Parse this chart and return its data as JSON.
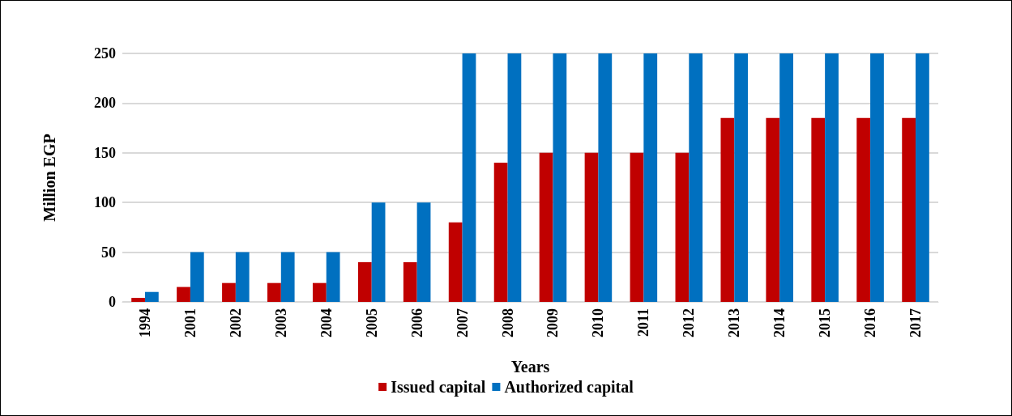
{
  "chart_data": {
    "type": "bar",
    "xlabel": "Years",
    "ylabel": "Million EGP",
    "categories": [
      "1994",
      "2001",
      "2002",
      "2003",
      "2004",
      "2005",
      "2006",
      "2007",
      "2008",
      "2009",
      "2010",
      "2011",
      "2012",
      "2013",
      "2014",
      "2015",
      "2016",
      "2017"
    ],
    "series": [
      {
        "name": "Issued capital",
        "color": "#c00000",
        "values": [
          4,
          15,
          19,
          19,
          19,
          40,
          40,
          80,
          140,
          150,
          150,
          150,
          150,
          185,
          185,
          185,
          185,
          185
        ]
      },
      {
        "name": "Authorized capital",
        "color": "#0070c0",
        "values": [
          10,
          50,
          50,
          50,
          50,
          100,
          100,
          250,
          250,
          250,
          250,
          250,
          250,
          250,
          250,
          250,
          250,
          250
        ]
      }
    ],
    "ylim": [
      0,
      250
    ],
    "yticks": [
      0,
      50,
      100,
      150,
      200,
      250
    ],
    "grid": "y",
    "legend": "bottom"
  }
}
